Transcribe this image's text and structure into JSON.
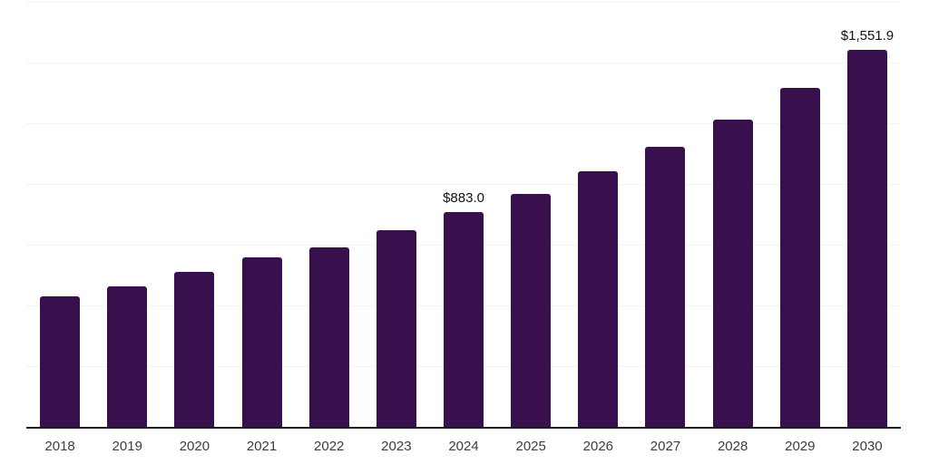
{
  "chart": {
    "colors": {
      "bar": "#37104d",
      "axis": "#1c1c1c",
      "gridline": "#f2f2f2",
      "tick_label": "#3d3d3d",
      "data_label": "#111111"
    },
    "gridline_count": 7
  },
  "chart_data": {
    "type": "bar",
    "title": "",
    "xlabel": "",
    "ylabel": "",
    "categories": [
      "2018",
      "2019",
      "2020",
      "2021",
      "2022",
      "2023",
      "2024",
      "2025",
      "2026",
      "2027",
      "2028",
      "2029",
      "2030"
    ],
    "values": [
      537,
      578,
      637,
      696,
      740,
      809,
      883.0,
      959,
      1052,
      1152,
      1266,
      1396,
      1551.9
    ],
    "data_labels": [
      "",
      "",
      "",
      "",
      "",
      "",
      "$883.0",
      "",
      "",
      "",
      "",
      "",
      "$1,551.9"
    ],
    "ylim": [
      0,
      1750
    ],
    "grid": "horizontal-only",
    "gridline_step": 250,
    "y_axis_labels_visible": false,
    "legend": "none",
    "bar_color": "#37104d"
  }
}
